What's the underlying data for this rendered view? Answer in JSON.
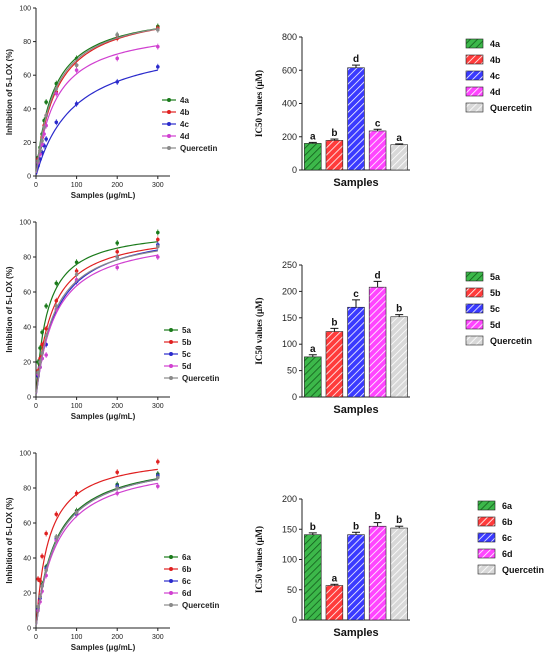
{
  "colors": {
    "4a": "#1a7a1a",
    "4b": "#e02020",
    "4c": "#2a2acc",
    "4d": "#d040d0",
    "quercetin": "#8a8a8a",
    "bar_a": "#3cb84a",
    "bar_b": "#ff3b3b",
    "bar_c": "#3a3aff",
    "bar_d": "#ff45ff",
    "bar_q": "#c9c9c9"
  },
  "chart_data": [
    {
      "type": "line",
      "panel": "top-left",
      "ylabel": "Inhibition of 5-LOX (%)",
      "xlabel": "Samples (μg/mL)",
      "xlim": [
        0,
        330
      ],
      "ylim": [
        0,
        100
      ],
      "xticks": [
        "0",
        "100",
        "200",
        "300"
      ],
      "yticks": [
        "0",
        "20",
        "40",
        "60",
        "80",
        "100"
      ],
      "legend_position": "lower-right",
      "series": [
        {
          "name": "4a",
          "color_key": "4a",
          "points": [
            [
              5,
              11
            ],
            [
              10,
              17
            ],
            [
              15,
              25
            ],
            [
              20,
              33
            ],
            [
              25,
              44
            ],
            [
              50,
              55
            ],
            [
              100,
              70
            ],
            [
              200,
              84
            ],
            [
              300,
              89
            ]
          ],
          "curve": {
            "vmax": 100,
            "k": 42
          }
        },
        {
          "name": "4b",
          "color_key": "4b",
          "points": [
            [
              5,
              10
            ],
            [
              10,
              15
            ],
            [
              15,
              23
            ],
            [
              20,
              30
            ],
            [
              25,
              36
            ],
            [
              50,
              50
            ],
            [
              100,
              66
            ],
            [
              200,
              82
            ],
            [
              300,
              88
            ]
          ],
          "curve": {
            "vmax": 102,
            "k": 50
          }
        },
        {
          "name": "4c",
          "color_key": "4c",
          "points": [
            [
              5,
              6
            ],
            [
              10,
              10
            ],
            [
              15,
              14
            ],
            [
              20,
              18
            ],
            [
              25,
              22
            ],
            [
              50,
              32
            ],
            [
              100,
              43
            ],
            [
              200,
              56
            ],
            [
              300,
              65
            ]
          ],
          "curve": {
            "vmax": 83,
            "k": 95
          }
        },
        {
          "name": "4d",
          "color_key": "4d",
          "points": [
            [
              5,
              8
            ],
            [
              10,
              13
            ],
            [
              15,
              19
            ],
            [
              20,
              25
            ],
            [
              25,
              30
            ],
            [
              50,
              49
            ],
            [
              100,
              63
            ],
            [
              200,
              70
            ],
            [
              300,
              77
            ]
          ],
          "curve": {
            "vmax": 90,
            "k": 48
          }
        },
        {
          "name": "Quercetin",
          "color_key": "quercetin",
          "points": [
            [
              5,
              9
            ],
            [
              10,
              15
            ],
            [
              15,
              21
            ],
            [
              20,
              29
            ],
            [
              25,
              36
            ],
            [
              50,
              52
            ],
            [
              100,
              66
            ],
            [
              200,
              84
            ],
            [
              300,
              87
            ]
          ],
          "curve": {
            "vmax": 101,
            "k": 46
          }
        }
      ]
    },
    {
      "type": "bar",
      "panel": "top-right",
      "ylabel": "IC50 values (μM)",
      "xlabel": "Samples",
      "ylim": [
        0,
        800
      ],
      "yticks": [
        "0",
        "200",
        "400",
        "600",
        "800"
      ],
      "categories": [
        "4a",
        "4b",
        "4c",
        "4d",
        "Quercetin"
      ],
      "values": [
        160,
        178,
        615,
        235,
        152
      ],
      "errors": [
        6,
        8,
        16,
        10,
        5
      ],
      "letters": [
        "a",
        "b",
        "d",
        "c",
        "a"
      ],
      "color_keys": [
        "bar_a",
        "bar_b",
        "bar_c",
        "bar_d",
        "bar_q"
      ],
      "legend_position": "right"
    },
    {
      "type": "line",
      "panel": "middle-left",
      "ylabel": "Inhibition of 5-LOX (%)",
      "xlabel": "Samples (μg/mL)",
      "xlim": [
        0,
        330
      ],
      "ylim": [
        0,
        100
      ],
      "xticks": [
        "0",
        "100",
        "200",
        "300"
      ],
      "yticks": [
        "0",
        "20",
        "40",
        "60",
        "80",
        "100"
      ],
      "legend_position": "lower-right",
      "series": [
        {
          "name": "5a",
          "color_key": "4a",
          "points": [
            [
              5,
              20
            ],
            [
              10,
              28
            ],
            [
              15,
              37
            ],
            [
              25,
              52
            ],
            [
              50,
              65
            ],
            [
              100,
              77
            ],
            [
              200,
              88
            ],
            [
              300,
              94
            ]
          ],
          "curve": {
            "vmax": 97,
            "k": 28
          }
        },
        {
          "name": "5b",
          "color_key": "4b",
          "points": [
            [
              5,
              15
            ],
            [
              10,
              22
            ],
            [
              15,
              30
            ],
            [
              25,
              39
            ],
            [
              50,
              55
            ],
            [
              100,
              72
            ],
            [
              200,
              83
            ],
            [
              300,
              90
            ]
          ],
          "curve": {
            "vmax": 96,
            "k": 38
          }
        },
        {
          "name": "5c",
          "color_key": "4c",
          "points": [
            [
              5,
              12
            ],
            [
              10,
              17
            ],
            [
              15,
              22
            ],
            [
              25,
              30
            ],
            [
              50,
              50
            ],
            [
              100,
              66
            ],
            [
              200,
              80
            ],
            [
              300,
              87
            ]
          ],
          "curve": {
            "vmax": 98,
            "k": 50
          }
        },
        {
          "name": "5d",
          "color_key": "4d",
          "points": [
            [
              5,
              13
            ],
            [
              10,
              17
            ],
            [
              15,
              22
            ],
            [
              25,
              24
            ],
            [
              50,
              50
            ],
            [
              100,
              67
            ],
            [
              200,
              74
            ],
            [
              300,
              80
            ]
          ],
          "curve": {
            "vmax": 94,
            "k": 48
          }
        },
        {
          "name": "Quercetin",
          "color_key": "quercetin",
          "points": [
            [
              5,
              14
            ],
            [
              10,
              20
            ],
            [
              15,
              25
            ],
            [
              25,
              35
            ],
            [
              50,
              52
            ],
            [
              100,
              70
            ],
            [
              200,
              80
            ],
            [
              300,
              86
            ]
          ],
          "curve": {
            "vmax": 96,
            "k": 45
          }
        }
      ]
    },
    {
      "type": "bar",
      "panel": "middle-right",
      "ylabel": "IC50 values (μM)",
      "xlabel": "Samples",
      "ylim": [
        0,
        250
      ],
      "yticks": [
        "0",
        "50",
        "100",
        "150",
        "200",
        "250"
      ],
      "categories": [
        "5a",
        "5b",
        "5c",
        "5d",
        "Quercetin"
      ],
      "values": [
        76,
        124,
        170,
        208,
        152
      ],
      "errors": [
        4,
        6,
        14,
        11,
        4
      ],
      "letters": [
        "a",
        "b",
        "c",
        "d",
        "b"
      ],
      "color_keys": [
        "bar_a",
        "bar_b",
        "bar_c",
        "bar_d",
        "bar_q"
      ],
      "legend_position": "right"
    },
    {
      "type": "line",
      "panel": "bottom-left",
      "ylabel": "Inhibition of 5-LOX (%)",
      "xlabel": "Samples (μg/mL)",
      "xlim": [
        0,
        330
      ],
      "ylim": [
        0,
        100
      ],
      "xticks": [
        "0",
        "100",
        "200",
        "300"
      ],
      "yticks": [
        "0",
        "20",
        "40",
        "60",
        "80",
        "100"
      ],
      "legend_position": "lower-right",
      "series": [
        {
          "name": "6a",
          "color_key": "4a",
          "points": [
            [
              5,
              12
            ],
            [
              10,
              18
            ],
            [
              15,
              25
            ],
            [
              25,
              35
            ],
            [
              50,
              52
            ],
            [
              100,
              67
            ],
            [
              200,
              82
            ],
            [
              300,
              88
            ]
          ],
          "curve": {
            "vmax": 99,
            "k": 48
          }
        },
        {
          "name": "6b",
          "color_key": "4b",
          "points": [
            [
              5,
              28
            ],
            [
              10,
              27
            ],
            [
              15,
              41
            ],
            [
              25,
              54
            ],
            [
              50,
              65
            ],
            [
              100,
              77
            ],
            [
              200,
              89
            ],
            [
              300,
              95
            ]
          ],
          "curve": {
            "vmax": 100,
            "k": 31
          }
        },
        {
          "name": "6c",
          "color_key": "4c",
          "points": [
            [
              5,
              11
            ],
            [
              10,
              17
            ],
            [
              15,
              24
            ],
            [
              25,
              34
            ],
            [
              50,
              51
            ],
            [
              100,
              65
            ],
            [
              200,
              81
            ],
            [
              300,
              87
            ]
          ],
          "curve": {
            "vmax": 99,
            "k": 50
          }
        },
        {
          "name": "6d",
          "color_key": "4d",
          "points": [
            [
              5,
              10
            ],
            [
              10,
              15
            ],
            [
              15,
              21
            ],
            [
              25,
              30
            ],
            [
              50,
              50
            ],
            [
              100,
              66
            ],
            [
              200,
              77
            ],
            [
              300,
              81
            ]
          ],
          "curve": {
            "vmax": 97,
            "k": 52
          }
        },
        {
          "name": "Quercetin",
          "color_key": "quercetin",
          "points": [
            [
              5,
              12
            ],
            [
              10,
              18
            ],
            [
              15,
              24
            ],
            [
              25,
              33
            ],
            [
              50,
              52
            ],
            [
              100,
              66
            ],
            [
              200,
              80
            ],
            [
              300,
              86
            ]
          ],
          "curve": {
            "vmax": 99,
            "k": 50
          }
        }
      ]
    },
    {
      "type": "bar",
      "panel": "bottom-right",
      "ylabel": "IC50 values (μM)",
      "xlabel": "Samples",
      "ylim": [
        0,
        200
      ],
      "yticks": [
        "0",
        "50",
        "100",
        "150",
        "200"
      ],
      "categories": [
        "6a",
        "6b",
        "6c",
        "6d",
        "Quercetin"
      ],
      "values": [
        141,
        57,
        141,
        155,
        152
      ],
      "errors": [
        3,
        2,
        4,
        6,
        3
      ],
      "letters": [
        "b",
        "a",
        "b",
        "b",
        "b"
      ],
      "color_keys": [
        "bar_a",
        "bar_b",
        "bar_c",
        "bar_d",
        "bar_q"
      ],
      "legend_position": "right"
    }
  ]
}
